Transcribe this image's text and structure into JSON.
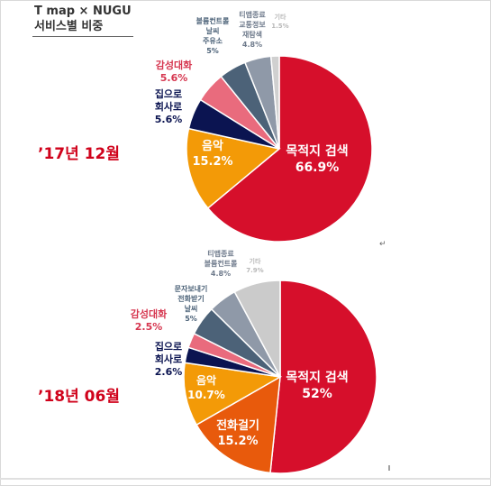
{
  "header": {
    "line1": "T map × NUGU",
    "line2": "서비스별 비중"
  },
  "chart_data": [
    {
      "type": "pie",
      "period": "’17년 12월",
      "slices": [
        {
          "label": "목적지 검색",
          "value": 66.9,
          "value_label": "66.9%",
          "color": "#d60f2b"
        },
        {
          "label": "음악",
          "value": 15.2,
          "value_label": "15.2%",
          "color": "#f39a07"
        },
        {
          "label": "집으로 회사로",
          "value": 5.6,
          "value_label": "5.6%",
          "color": "#0b1451"
        },
        {
          "label": "감성대화",
          "value": 5.6,
          "value_label": "5.6%",
          "color": "#e96b7d"
        },
        {
          "label": "볼륨컨트롤 날씨 주유소",
          "value": 5,
          "value_label": "5%",
          "color": "#4c6278"
        },
        {
          "label": "티맵종료 교통정보 재탐색",
          "value": 4.8,
          "value_label": "4.8%",
          "color": "#8f99a8"
        },
        {
          "label": "기타",
          "value": 1.5,
          "value_label": "1.5%",
          "color": "#d0d0d0"
        }
      ]
    },
    {
      "type": "pie",
      "period": "’18년 06월",
      "slices": [
        {
          "label": "목적지 검색",
          "value": 52,
          "value_label": "52%",
          "color": "#d60f2b"
        },
        {
          "label": "전화걸기",
          "value": 15.2,
          "value_label": "15.2%",
          "color": "#e85a0c"
        },
        {
          "label": "음악",
          "value": 10.7,
          "value_label": "10.7%",
          "color": "#f39a07"
        },
        {
          "label": "집으로 회사로",
          "value": 2.6,
          "value_label": "2.6%",
          "color": "#0b1451"
        },
        {
          "label": "감성대화",
          "value": 2.5,
          "value_label": "2.5%",
          "color": "#e96b7d"
        },
        {
          "label": "문자보내기 전화받기 날씨",
          "value": 5,
          "value_label": "5%",
          "color": "#4c6278"
        },
        {
          "label": "티맵종료 볼륨컨트롤",
          "value": 4.8,
          "value_label": "4.8%",
          "color": "#8f99a8"
        },
        {
          "label": "기타",
          "value": 7.9,
          "value_label": "7.9%",
          "color": "#cbcbcb"
        }
      ]
    }
  ]
}
